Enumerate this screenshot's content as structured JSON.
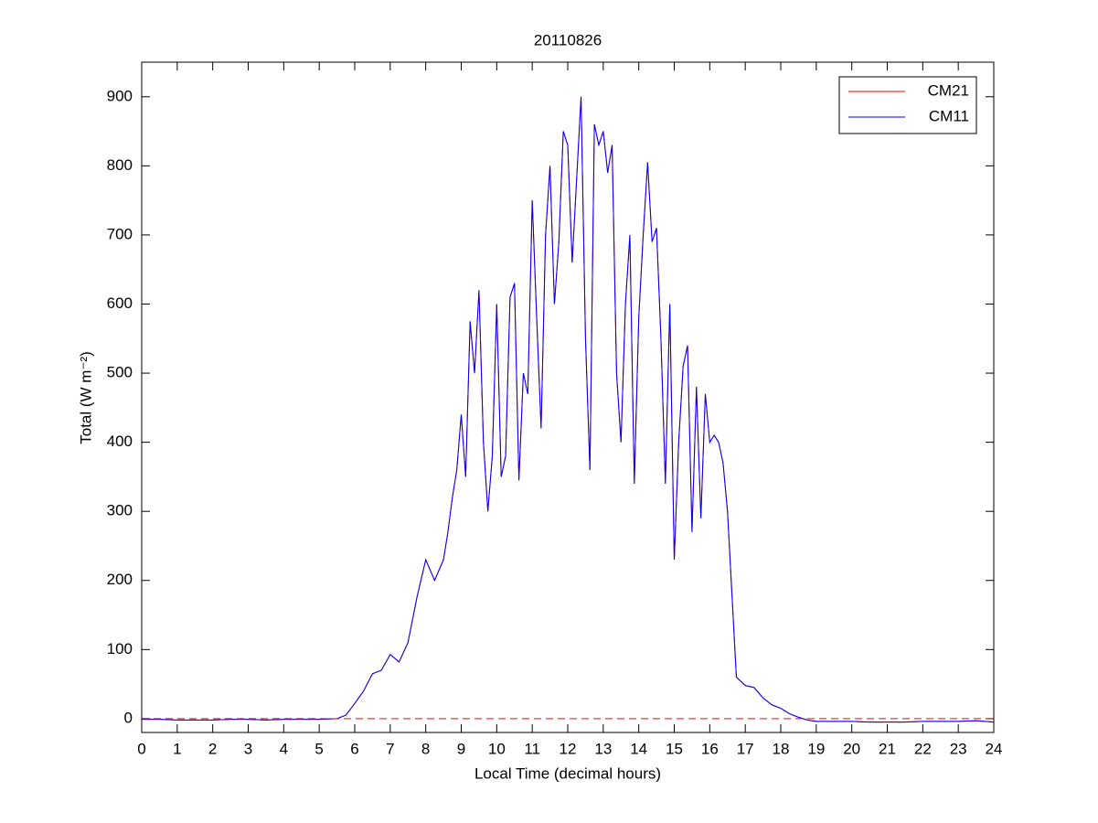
{
  "chart_data": {
    "type": "line",
    "title": "20110826",
    "xlabel": "Local Time (decimal hours)",
    "ylabel": "Total (W m⁻²)",
    "x": [
      0,
      0.5,
      1,
      1.5,
      2,
      2.5,
      3,
      3.5,
      4,
      4.5,
      5,
      5.5,
      5.75,
      6,
      6.25,
      6.5,
      6.75,
      7,
      7.25,
      7.5,
      7.75,
      8,
      8.25,
      8.5,
      8.625,
      8.75,
      8.875,
      9,
      9.125,
      9.25,
      9.375,
      9.5,
      9.625,
      9.75,
      9.875,
      10,
      10.125,
      10.25,
      10.375,
      10.5,
      10.625,
      10.75,
      10.875,
      11,
      11.125,
      11.25,
      11.375,
      11.5,
      11.625,
      11.75,
      11.875,
      12,
      12.125,
      12.25,
      12.375,
      12.5,
      12.625,
      12.75,
      12.875,
      13,
      13.125,
      13.25,
      13.375,
      13.5,
      13.625,
      13.75,
      13.875,
      14,
      14.125,
      14.25,
      14.375,
      14.5,
      14.625,
      14.75,
      14.875,
      15,
      15.125,
      15.25,
      15.375,
      15.5,
      15.625,
      15.75,
      15.875,
      16,
      16.125,
      16.25,
      16.375,
      16.5,
      16.75,
      17,
      17.25,
      17.5,
      17.75,
      18,
      18.25,
      18.5,
      18.75,
      19,
      19.5,
      20,
      20.5,
      21,
      21.5,
      22,
      22.5,
      23,
      23.5,
      24
    ],
    "series": [
      {
        "name": "CM21",
        "color": "#ff0000",
        "values": [
          -1,
          -1,
          -2,
          -2,
          -2,
          -1,
          -1,
          -2,
          -1,
          -1,
          -1,
          0,
          5,
          22,
          40,
          65,
          70,
          93,
          82,
          110,
          175,
          230,
          200,
          230,
          270,
          320,
          360,
          440,
          350,
          575,
          500,
          620,
          400,
          300,
          380,
          600,
          350,
          380,
          610,
          630,
          345,
          500,
          470,
          750,
          580,
          420,
          700,
          800,
          600,
          690,
          850,
          830,
          660,
          780,
          900,
          550,
          360,
          860,
          830,
          850,
          790,
          830,
          500,
          400,
          600,
          700,
          340,
          580,
          700,
          805,
          690,
          710,
          550,
          340,
          600,
          230,
          400,
          510,
          540,
          270,
          480,
          290,
          470,
          400,
          410,
          400,
          370,
          300,
          60,
          48,
          45,
          30,
          20,
          15,
          7,
          2,
          -2,
          -4,
          -4,
          -4,
          -5,
          -5,
          -5,
          -4,
          -4,
          -4,
          -3,
          -5
        ]
      },
      {
        "name": "CM11",
        "color": "#0000ff",
        "values": [
          -1,
          -1,
          -2,
          -2,
          -2,
          -1,
          -1,
          -2,
          -1,
          -1,
          -1,
          0,
          5,
          22,
          40,
          65,
          70,
          93,
          82,
          110,
          175,
          230,
          200,
          230,
          270,
          320,
          360,
          440,
          350,
          575,
          500,
          620,
          400,
          300,
          380,
          600,
          350,
          380,
          610,
          630,
          345,
          500,
          470,
          750,
          580,
          420,
          700,
          800,
          600,
          690,
          850,
          830,
          660,
          780,
          900,
          550,
          360,
          860,
          830,
          850,
          790,
          830,
          500,
          400,
          600,
          700,
          340,
          580,
          700,
          805,
          690,
          710,
          550,
          340,
          600,
          230,
          400,
          510,
          540,
          270,
          480,
          290,
          470,
          400,
          410,
          400,
          370,
          300,
          60,
          48,
          45,
          30,
          20,
          15,
          7,
          2,
          -2,
          -4,
          -4,
          -4,
          -5,
          -5,
          -5,
          -4,
          -4,
          -4,
          -3,
          -5
        ]
      }
    ],
    "reference_line": {
      "value": 0,
      "color": "#ff0000"
    },
    "xlim": [
      0,
      24
    ],
    "xticks": [
      0,
      1,
      2,
      3,
      4,
      5,
      6,
      7,
      8,
      9,
      10,
      11,
      12,
      13,
      14,
      15,
      16,
      17,
      18,
      19,
      20,
      21,
      22,
      23,
      24
    ],
    "ylim": [
      -20,
      950
    ],
    "yticks": [
      0,
      100,
      200,
      300,
      400,
      500,
      600,
      700,
      800,
      900
    ],
    "legend": "top-right"
  }
}
